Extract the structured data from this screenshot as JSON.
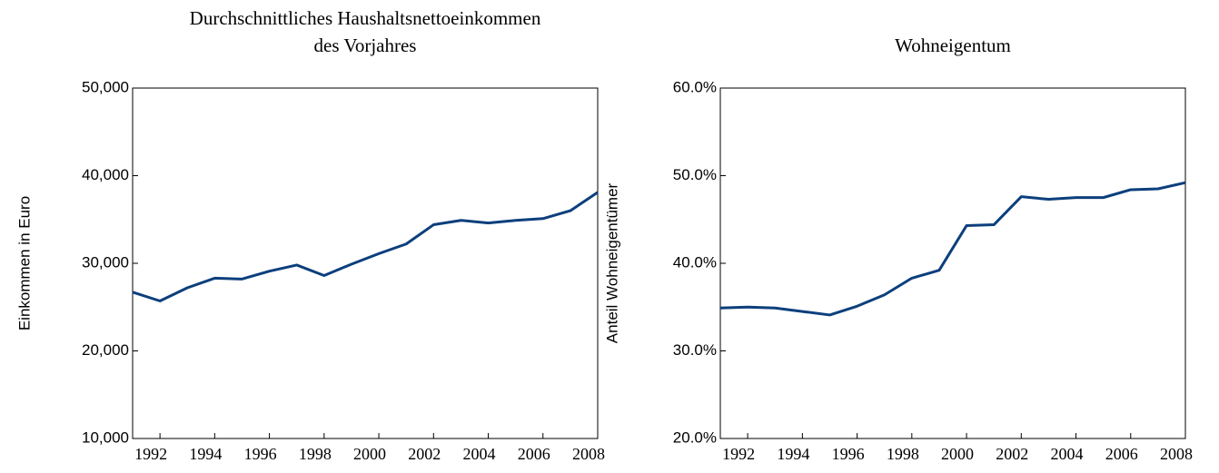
{
  "chart_data": [
    {
      "type": "line",
      "title": [
        "Durchschnittliches Haushaltsnettoeinkommen",
        "des Vorjahres"
      ],
      "y_label": "Einkommen in Euro",
      "x": [
        1991,
        1992,
        1993,
        1994,
        1995,
        1996,
        1997,
        1998,
        1999,
        2000,
        2001,
        2002,
        2003,
        2004,
        2005,
        2006,
        2007,
        2008
      ],
      "series": [
        {
          "name": "Einkommen",
          "color": "#0c3f7c",
          "values": [
            26700,
            25700,
            27200,
            28300,
            28200,
            29100,
            29800,
            28600,
            29900,
            31100,
            32200,
            34400,
            34900,
            34600,
            34900,
            35100,
            36000,
            38100
          ]
        }
      ],
      "xlim": [
        1991,
        2008
      ],
      "xticks": [
        1992,
        1994,
        1996,
        1998,
        2000,
        2002,
        2004,
        2006,
        2008
      ],
      "ylim": [
        10000,
        50000
      ],
      "yticks": [
        {
          "value": 10000,
          "label": "10,000"
        },
        {
          "value": 20000,
          "label": "20,000"
        },
        {
          "value": 30000,
          "label": "30,000"
        },
        {
          "value": 40000,
          "label": "40,000"
        },
        {
          "value": 50000,
          "label": "50,000"
        }
      ],
      "grid": false
    },
    {
      "type": "line",
      "title": [
        "Wohneigentum"
      ],
      "y_label": "Anteil Wohneigentümer",
      "x": [
        1991,
        1992,
        1993,
        1994,
        1995,
        1996,
        1997,
        1998,
        1999,
        2000,
        2001,
        2002,
        2003,
        2004,
        2005,
        2006,
        2007,
        2008
      ],
      "series": [
        {
          "name": "Wohneigentum",
          "color": "#0c3f7c",
          "values": [
            34.9,
            35.0,
            34.9,
            34.5,
            34.1,
            35.1,
            36.4,
            38.3,
            39.2,
            44.3,
            44.4,
            47.6,
            47.3,
            47.5,
            47.5,
            48.4,
            48.5,
            49.2
          ]
        }
      ],
      "xlim": [
        1991,
        2008
      ],
      "xticks": [
        1992,
        1994,
        1996,
        1998,
        2000,
        2002,
        2004,
        2006,
        2008
      ],
      "ylim": [
        20,
        60
      ],
      "yticks": [
        {
          "value": 20,
          "label": "20.0%"
        },
        {
          "value": 30,
          "label": "30.0%"
        },
        {
          "value": 40,
          "label": "40.0%"
        },
        {
          "value": 50,
          "label": "50.0%"
        },
        {
          "value": 60,
          "label": "60.0%"
        }
      ],
      "grid": false
    }
  ]
}
